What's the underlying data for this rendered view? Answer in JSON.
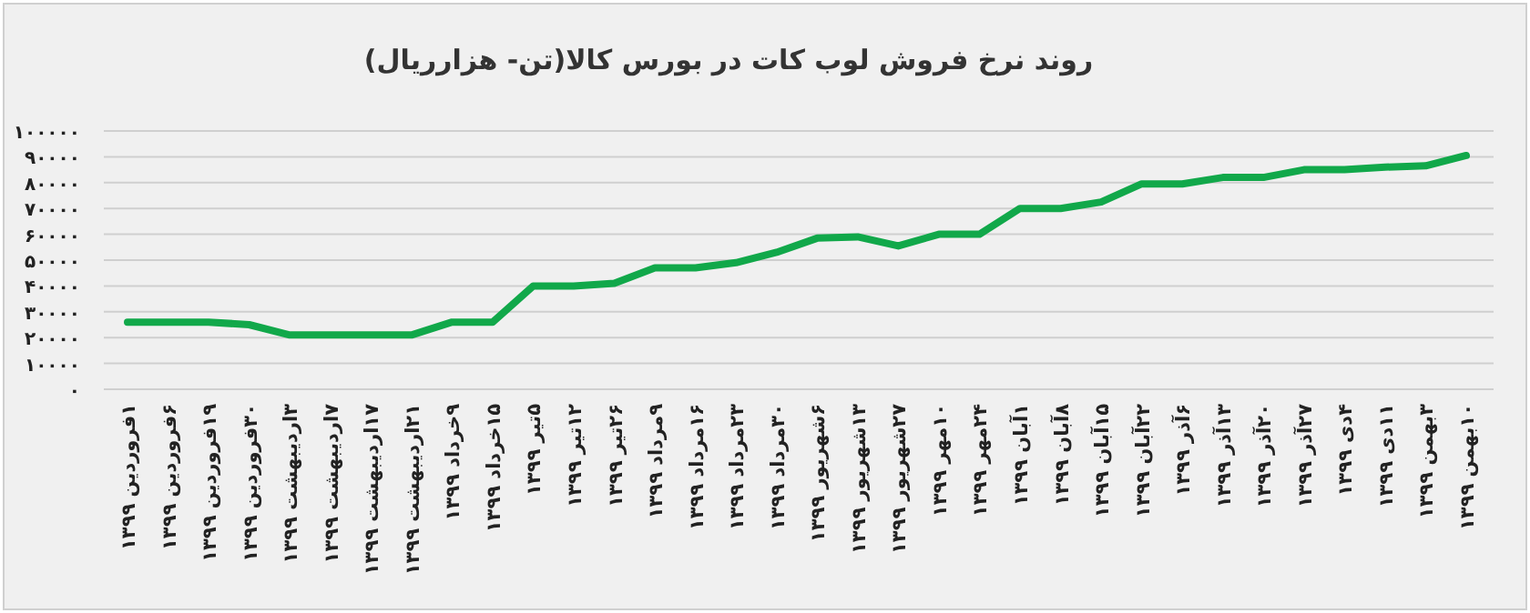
{
  "chart_data": {
    "type": "line",
    "title": "روند نرخ فروش لوب کات در بورس کالا(تن- هزارریال)",
    "categories": [
      "۱فروردین ۱۳۹۹",
      "۶فروردین ۱۳۹۹",
      "۱۹فروردین ۱۳۹۹",
      "۳۰فروردین ۱۳۹۹",
      "۳اردیبهشت ۱۳۹۹",
      "۷اردیبهشت ۱۳۹۹",
      "۱۷اردیبهشت ۱۳۹۹",
      "۲۱اردیبهشت ۱۳۹۹",
      "۹خرداد ۱۳۹۹",
      "۱۵خرداد ۱۳۹۹",
      "۵تیر ۱۳۹۹",
      "۱۲تیر ۱۳۹۹",
      "۲۶تیر ۱۳۹۹",
      "۹مرداد ۱۳۹۹",
      "۱۶مرداد ۱۳۹۹",
      "۲۳مرداد ۱۳۹۹",
      "۳۰مرداد ۱۳۹۹",
      "۶شهریور ۱۳۹۹",
      "۱۳شهریور ۱۳۹۹",
      "۲۷شهریور ۱۳۹۹",
      "۱۰مهر ۱۳۹۹",
      "۲۴مهر ۱۳۹۹",
      "۱آبان ۱۳۹۹",
      "۸آبان ۱۳۹۹",
      "۱۵آبان ۱۳۹۹",
      "۲۲آبان ۱۳۹۹",
      "۶آذر ۱۳۹۹",
      "۱۳آذر ۱۳۹۹",
      "۲۰آذر ۱۳۹۹",
      "۲۷آذر ۱۳۹۹",
      "۴دی ۱۳۹۹",
      "۱۱دی ۱۳۹۹",
      "۳بهمن ۱۳۹۹",
      "۱۰بهمن ۱۳۹۹"
    ],
    "series": [
      {
        "color": "#11a84a",
        "values": [
          26000,
          26000,
          26000,
          25000,
          21000,
          21000,
          21000,
          21000,
          26000,
          26000,
          40000,
          40000,
          41000,
          47000,
          47000,
          49000,
          53000,
          58500,
          59000,
          55500,
          60000,
          60000,
          70000,
          70000,
          72500,
          79500,
          79500,
          82000,
          82000,
          85000,
          85000,
          86000,
          86500,
          90500
        ]
      }
    ],
    "ylim": [
      0,
      100000
    ],
    "yticks": [
      {
        "value": 0,
        "label": "۰"
      },
      {
        "value": 10000,
        "label": "۱۰۰۰۰"
      },
      {
        "value": 20000,
        "label": "۲۰۰۰۰"
      },
      {
        "value": 30000,
        "label": "۳۰۰۰۰"
      },
      {
        "value": 40000,
        "label": "۴۰۰۰۰"
      },
      {
        "value": 50000,
        "label": "۵۰۰۰۰"
      },
      {
        "value": 60000,
        "label": "۶۰۰۰۰"
      },
      {
        "value": 70000,
        "label": "۷۰۰۰۰"
      },
      {
        "value": 80000,
        "label": "۸۰۰۰۰"
      },
      {
        "value": 90000,
        "label": "۹۰۰۰۰"
      },
      {
        "value": 100000,
        "label": "۱۰۰۰۰۰"
      }
    ],
    "grid": "y",
    "marker": "none",
    "line_style": "solid"
  }
}
